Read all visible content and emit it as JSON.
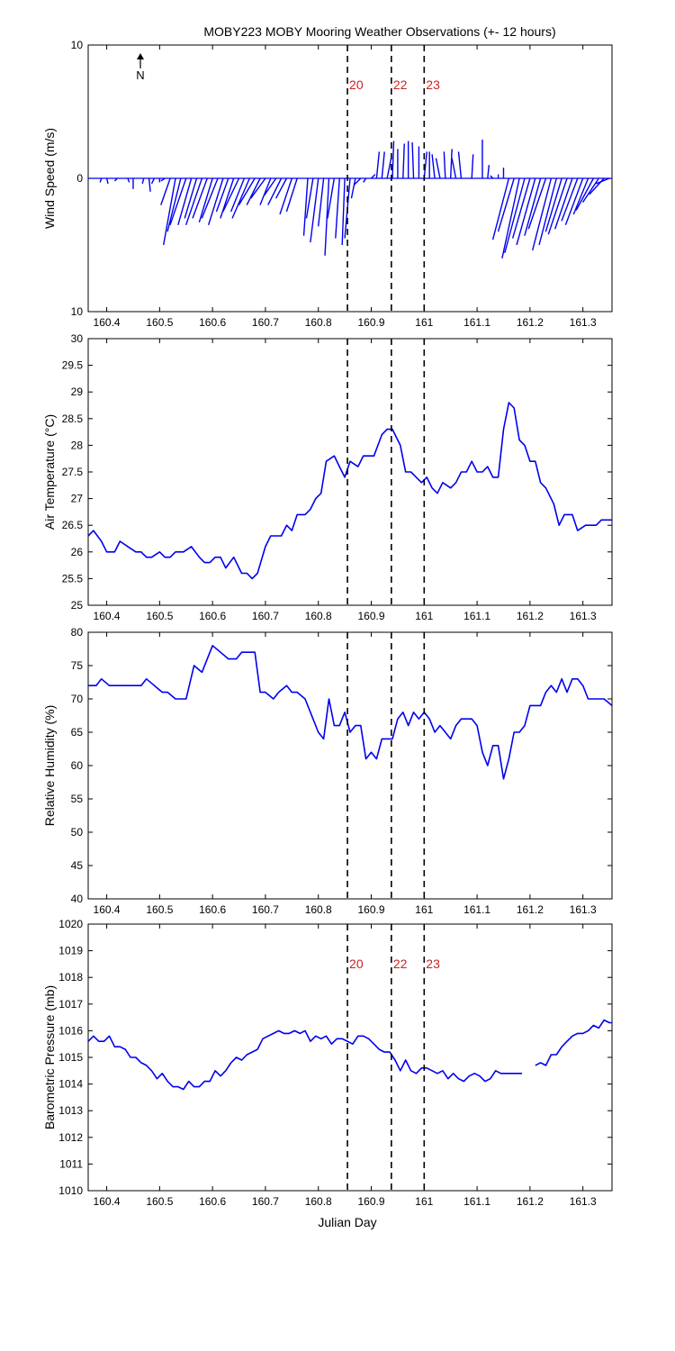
{
  "title": "MOBY223 MOBY Mooring Weather Observations (+- 12 hours)",
  "colors": {
    "series": "#0000ee",
    "marker_label": "#cc2222",
    "axis": "#000000"
  },
  "markers": {
    "x": [
      160.855,
      160.938,
      161.0
    ],
    "labels": [
      "20",
      "22",
      "23"
    ]
  },
  "chart_data": [
    {
      "type": "quiver",
      "ylabel": "Wind Speed (m/s)",
      "xlim": [
        160.365,
        161.355
      ],
      "ylim": [
        -10,
        10
      ],
      "yticks": [
        10,
        0,
        10
      ],
      "xticks": [
        "160.4",
        "160.5",
        "160.6",
        "160.7",
        "160.8",
        "160.9",
        "161",
        "161.1",
        "161.2",
        "161.3"
      ],
      "xtick_values": [
        160.4,
        160.5,
        160.6,
        160.7,
        160.8,
        160.9,
        161.0,
        161.1,
        161.2,
        161.3
      ],
      "north_label": "N",
      "show_marker_labels": true,
      "series": [
        {
          "name": "wind",
          "x": [
            160.39,
            160.4,
            160.42,
            160.44,
            160.45,
            160.47,
            160.48,
            160.49,
            160.5,
            160.51,
            160.52,
            160.53,
            160.54,
            160.55,
            160.56,
            160.57,
            160.58,
            160.59,
            160.6,
            160.61,
            160.62,
            160.63,
            160.64,
            160.65,
            160.66,
            160.67,
            160.68,
            160.69,
            160.7,
            160.71,
            160.72,
            160.73,
            160.74,
            160.75,
            160.76,
            160.78,
            160.79,
            160.8,
            160.81,
            160.82,
            160.83,
            160.84,
            160.85,
            160.86,
            160.87,
            160.88,
            160.89,
            160.9,
            160.91,
            160.92,
            160.93,
            160.94,
            160.95,
            160.96,
            160.97,
            160.98,
            160.99,
            161.0,
            161.01,
            161.02,
            161.03,
            161.04,
            161.05,
            161.06,
            161.07,
            161.09,
            161.11,
            161.12,
            161.13,
            161.14,
            161.15,
            161.16,
            161.17,
            161.18,
            161.19,
            161.2,
            161.21,
            161.22,
            161.23,
            161.24,
            161.25,
            161.26,
            161.27,
            161.28,
            161.29,
            161.3,
            161.31,
            161.32,
            161.33,
            161.34,
            161.35
          ],
          "u": [
            -0.1,
            0.1,
            -0.2,
            0.1,
            0.0,
            -0.1,
            0.1,
            -0.2,
            0.0,
            -0.3,
            -0.7,
            -0.9,
            -1.0,
            -1.2,
            -1.0,
            -0.9,
            -1.2,
            -1.1,
            -1.0,
            -1.2,
            -1.1,
            -0.9,
            -1.0,
            -1.2,
            -1.0,
            -1.3,
            -1.2,
            -1.0,
            -1.1,
            -0.8,
            -0.9,
            -1.0,
            -0.8,
            -0.9,
            -0.8,
            -0.3,
            -0.5,
            -0.6,
            -0.4,
            -0.3,
            -0.5,
            -0.3,
            -0.2,
            -0.4,
            -0.3,
            -0.5,
            -0.2,
            0.3,
            0.2,
            0.2,
            0.3,
            0.1,
            0.0,
            0.1,
            0.0,
            -0.1,
            0.0,
            0.2,
            0.0,
            -0.2,
            -0.3,
            -0.1,
            0.1,
            -0.3,
            -0.2,
            0.1,
            0.0,
            0.1,
            -0.2,
            0.0,
            0.0,
            -1.2,
            -1.2,
            -1.3,
            -1.5,
            -1.3,
            -1.4,
            -1.2,
            -1.3,
            -1.4,
            -1.3,
            -1.2,
            -1.4,
            -1.3,
            -1.2,
            -1.3,
            -1.1,
            -1.3,
            -1.2,
            -1.1,
            -1.0
          ],
          "v": [
            -0.3,
            -0.4,
            -0.2,
            -0.3,
            -0.8,
            -0.4,
            -1.0,
            -0.4,
            -0.3,
            -0.2,
            -2.0,
            -5.0,
            -4.0,
            -3.5,
            -3.5,
            -3.0,
            -3.5,
            -3.0,
            -3.3,
            -3.0,
            -3.5,
            -2.5,
            -3.0,
            -2.5,
            -2.5,
            -3.0,
            -2.0,
            -2.0,
            -1.5,
            -2.0,
            -1.3,
            -2.0,
            -1.5,
            -2.7,
            -2.5,
            -4.3,
            -3.0,
            -4.8,
            -3.6,
            -5.8,
            -3.0,
            -4.5,
            -5.0,
            -4.5,
            -1.5,
            -0.5,
            -0.3,
            0.3,
            2.0,
            2.0,
            1.5,
            2.8,
            2.2,
            2.6,
            2.8,
            2.7,
            2.4,
            2.0,
            2.0,
            1.8,
            1.5,
            2.0,
            2.2,
            1.5,
            2.0,
            1.8,
            2.9,
            1.0,
            0.2,
            0.3,
            0.8,
            -4.6,
            -4.0,
            -6.0,
            -5.6,
            -4.5,
            -5.0,
            -4.3,
            -3.8,
            -5.4,
            -5.0,
            -4.0,
            -4.2,
            -3.8,
            -3.2,
            -3.5,
            -2.7,
            -2.4,
            -1.8,
            -1.2,
            -0.4
          ]
        }
      ]
    },
    {
      "type": "line",
      "ylabel": "Air Temperature (°C)",
      "xlim": [
        160.365,
        161.355
      ],
      "ylim": [
        25,
        30
      ],
      "yticks": [
        25,
        25.5,
        26,
        26.5,
        27,
        27.5,
        28,
        28.5,
        29,
        29.5,
        30
      ],
      "xticks": [
        "160.4",
        "160.5",
        "160.6",
        "160.7",
        "160.8",
        "160.9",
        "161",
        "161.1",
        "161.2",
        "161.3"
      ],
      "xtick_values": [
        160.4,
        160.5,
        160.6,
        160.7,
        160.8,
        160.9,
        161.0,
        161.1,
        161.2,
        161.3
      ],
      "show_marker_labels": false,
      "series": [
        {
          "name": "air_temperature",
          "x": [
            160.365,
            160.375,
            160.39,
            160.4,
            160.415,
            160.425,
            160.44,
            160.455,
            160.465,
            160.475,
            160.485,
            160.5,
            160.51,
            160.52,
            160.53,
            160.545,
            160.56,
            160.575,
            160.585,
            160.595,
            160.605,
            160.615,
            160.625,
            160.64,
            160.655,
            160.665,
            160.675,
            160.685,
            160.7,
            160.71,
            160.72,
            160.73,
            160.74,
            160.75,
            160.76,
            160.775,
            160.785,
            160.795,
            160.805,
            160.815,
            160.83,
            160.84,
            160.85,
            160.86,
            160.875,
            160.885,
            160.895,
            160.905,
            160.92,
            160.93,
            160.94,
            160.955,
            160.965,
            160.975,
            160.985,
            160.995,
            161.005,
            161.015,
            161.025,
            161.035,
            161.05,
            161.06,
            161.07,
            161.08,
            161.09,
            161.1,
            161.11,
            161.12,
            161.13,
            161.14,
            161.15,
            161.16,
            161.17,
            161.18,
            161.19,
            161.2,
            161.21,
            161.22,
            161.23,
            161.245,
            161.255,
            161.265,
            161.28,
            161.29,
            161.305,
            161.315,
            161.325,
            161.335,
            161.355
          ],
          "y": [
            26.3,
            26.4,
            26.2,
            26.0,
            26.0,
            26.2,
            26.1,
            26.0,
            26.0,
            25.9,
            25.9,
            26.0,
            25.9,
            25.9,
            26.0,
            26.0,
            26.1,
            25.9,
            25.8,
            25.8,
            25.9,
            25.9,
            25.7,
            25.9,
            25.6,
            25.6,
            25.5,
            25.6,
            26.1,
            26.3,
            26.3,
            26.3,
            26.5,
            26.4,
            26.7,
            26.7,
            26.8,
            27.0,
            27.1,
            27.7,
            27.8,
            27.6,
            27.4,
            27.7,
            27.6,
            27.8,
            27.8,
            27.8,
            28.2,
            28.3,
            28.3,
            28.0,
            27.5,
            27.5,
            27.4,
            27.3,
            27.4,
            27.2,
            27.1,
            27.3,
            27.2,
            27.3,
            27.5,
            27.5,
            27.7,
            27.5,
            27.5,
            27.6,
            27.4,
            27.4,
            28.3,
            28.8,
            28.7,
            28.1,
            28.0,
            27.7,
            27.7,
            27.3,
            27.2,
            26.9,
            26.5,
            26.7,
            26.7,
            26.4,
            26.5,
            26.5,
            26.5,
            26.6,
            26.6
          ],
          "x2": [
            161.355
          ],
          "y2": [
            26.6
          ]
        }
      ]
    },
    {
      "type": "line",
      "ylabel": "Relative Humidity (%)",
      "xlim": [
        160.365,
        161.355
      ],
      "ylim": [
        40,
        80
      ],
      "yticks": [
        40,
        45,
        50,
        55,
        60,
        65,
        70,
        75,
        80
      ],
      "xticks": [
        "160.4",
        "160.5",
        "160.6",
        "160.7",
        "160.8",
        "160.9",
        "161",
        "161.1",
        "161.2",
        "161.3"
      ],
      "xtick_values": [
        160.4,
        160.5,
        160.6,
        160.7,
        160.8,
        160.9,
        161.0,
        161.1,
        161.2,
        161.3
      ],
      "show_marker_labels": false,
      "series": [
        {
          "name": "relative_humidity",
          "x": [
            160.365,
            160.38,
            160.39,
            160.405,
            160.425,
            160.44,
            160.455,
            160.465,
            160.475,
            160.49,
            160.505,
            160.515,
            160.53,
            160.54,
            160.55,
            160.565,
            160.58,
            160.59,
            160.6,
            160.615,
            160.63,
            160.645,
            160.655,
            160.665,
            160.68,
            160.69,
            160.7,
            160.715,
            160.725,
            160.74,
            160.75,
            160.76,
            160.775,
            160.785,
            160.8,
            160.81,
            160.82,
            160.83,
            160.84,
            160.85,
            160.86,
            160.87,
            160.88,
            160.89,
            160.9,
            160.91,
            160.92,
            160.93,
            160.94,
            160.95,
            160.96,
            160.97,
            160.98,
            160.99,
            161.0,
            161.01,
            161.02,
            161.03,
            161.04,
            161.05,
            161.06,
            161.07,
            161.08,
            161.09,
            161.1,
            161.11,
            161.12,
            161.13,
            161.14,
            161.15,
            161.16,
            161.17,
            161.18,
            161.19,
            161.2,
            161.21,
            161.22,
            161.23,
            161.24,
            161.25,
            161.26,
            161.27,
            161.28,
            161.29,
            161.3,
            161.31,
            161.32,
            161.34,
            161.355
          ],
          "y": [
            72,
            72,
            73,
            72,
            72,
            72,
            72,
            72,
            73,
            72,
            71,
            71,
            70,
            70,
            70,
            75,
            74,
            76,
            78,
            77,
            76,
            76,
            77,
            77,
            77,
            71,
            71,
            70,
            71,
            72,
            71,
            71,
            70,
            68,
            65,
            64,
            70,
            66,
            66,
            68,
            65,
            66,
            66,
            61,
            62,
            61,
            64,
            64,
            64,
            67,
            68,
            66,
            68,
            67,
            68,
            67,
            65,
            66,
            65,
            64,
            66,
            67,
            67,
            67,
            66,
            62,
            60,
            63,
            63,
            58,
            61,
            65,
            65,
            66,
            69,
            69,
            69,
            71,
            72,
            71,
            73,
            71,
            73,
            73,
            72,
            70,
            70,
            70,
            69
          ],
          "x2": [],
          "y2": []
        }
      ]
    },
    {
      "type": "line",
      "ylabel": "Barometric Pressure (mb)",
      "xlabel": "Julian Day",
      "xlim": [
        160.365,
        161.355
      ],
      "ylim": [
        1010,
        1020
      ],
      "yticks": [
        1010,
        1011,
        1012,
        1013,
        1014,
        1015,
        1016,
        1017,
        1018,
        1019,
        1020
      ],
      "xticks": [
        "160.4",
        "160.5",
        "160.6",
        "160.7",
        "160.8",
        "160.9",
        "161",
        "161.1",
        "161.2",
        "161.3"
      ],
      "xtick_values": [
        160.4,
        160.5,
        160.6,
        160.7,
        160.8,
        160.9,
        161.0,
        161.1,
        161.2,
        161.3
      ],
      "show_marker_labels": true,
      "series": [
        {
          "name": "barometric_pressure",
          "x": [
            160.365,
            160.375,
            160.385,
            160.395,
            160.405,
            160.415,
            160.425,
            160.435,
            160.445,
            160.455,
            160.465,
            160.475,
            160.485,
            160.495,
            160.505,
            160.515,
            160.525,
            160.535,
            160.545,
            160.555,
            160.565,
            160.575,
            160.585,
            160.595,
            160.605,
            160.615,
            160.625,
            160.635,
            160.645,
            160.655,
            160.665,
            160.675,
            160.685,
            160.695,
            160.705,
            160.715,
            160.725,
            160.735,
            160.745,
            160.755,
            160.765,
            160.775,
            160.785,
            160.795,
            160.805,
            160.815,
            160.825,
            160.835,
            160.845,
            160.855,
            160.865,
            160.875,
            160.885,
            160.895,
            160.905,
            160.915,
            160.925,
            160.935,
            160.945,
            160.955,
            160.965,
            160.975,
            160.985,
            160.995,
            161.005,
            161.015,
            161.025,
            161.035,
            161.045,
            161.055,
            161.065,
            161.075,
            161.085,
            161.095,
            161.105,
            161.115,
            161.125,
            161.135,
            161.145,
            161.155,
            161.165,
            161.175,
            161.185
          ],
          "y": [
            1015.6,
            1015.8,
            1015.6,
            1015.6,
            1015.8,
            1015.4,
            1015.4,
            1015.3,
            1015.0,
            1015.0,
            1014.8,
            1014.7,
            1014.5,
            1014.2,
            1014.4,
            1014.1,
            1013.9,
            1013.9,
            1013.8,
            1014.1,
            1013.9,
            1013.9,
            1014.1,
            1014.1,
            1014.5,
            1014.3,
            1014.5,
            1014.8,
            1015.0,
            1014.9,
            1015.1,
            1015.2,
            1015.3,
            1015.7,
            1015.8,
            1015.9,
            1016.0,
            1015.9,
            1015.9,
            1016.0,
            1015.9,
            1016.0,
            1015.6,
            1015.8,
            1015.7,
            1015.8,
            1015.5,
            1015.7,
            1015.7,
            1015.6,
            1015.5,
            1015.8,
            1015.8,
            1015.7,
            1015.5,
            1015.3,
            1015.2,
            1015.2,
            1014.9,
            1014.5,
            1014.9,
            1014.5,
            1014.4,
            1014.6,
            1014.6,
            1014.5,
            1014.4,
            1014.5,
            1014.2,
            1014.4,
            1014.2,
            1014.1,
            1014.3,
            1014.4,
            1014.3,
            1014.1,
            1014.2,
            1014.5,
            1014.4,
            1014.4,
            1014.4,
            1014.4,
            1014.4
          ],
          "x2": [
            161.21,
            161.22,
            161.23,
            161.24,
            161.25,
            161.26,
            161.27,
            161.28,
            161.29,
            161.3,
            161.31,
            161.32,
            161.33,
            161.34,
            161.35,
            161.355
          ],
          "y2": [
            1014.7,
            1014.8,
            1014.7,
            1015.1,
            1015.1,
            1015.4,
            1015.6,
            1015.8,
            1015.9,
            1015.9,
            1016.0,
            1016.2,
            1016.1,
            1016.4,
            1016.3,
            1016.3
          ]
        }
      ]
    }
  ]
}
